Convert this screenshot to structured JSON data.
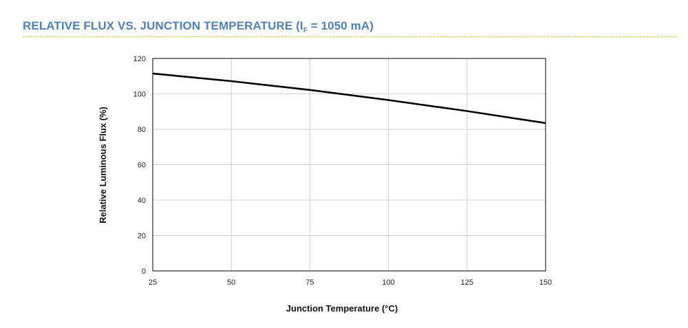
{
  "header": {
    "title_main": "RELATIVE FLUX VS. JUNCTION TEMPERATURE (I",
    "title_sub": "F",
    "title_end": " = 1050 mA)"
  },
  "colors": {
    "title": "#4f81bd",
    "divider": "#f0c419",
    "line": "#000000",
    "grid": "#d0d0d0"
  },
  "chart_data": {
    "type": "line",
    "title": "RELATIVE FLUX VS. JUNCTION TEMPERATURE (IF = 1050 mA)",
    "xlabel": "Junction Temperature (°C)",
    "ylabel": "Relative Luminous Flux (%)",
    "xlim": [
      25,
      150
    ],
    "ylim": [
      0,
      120
    ],
    "xticks": [
      25,
      50,
      75,
      100,
      125,
      150
    ],
    "yticks": [
      0,
      20,
      40,
      60,
      80,
      100,
      120
    ],
    "grid": true,
    "series": [
      {
        "x": [
          25,
          50,
          75,
          100,
          125,
          150
        ],
        "y": [
          111.5,
          107.2,
          102.2,
          96.5,
          90.3,
          83.5
        ]
      }
    ]
  }
}
